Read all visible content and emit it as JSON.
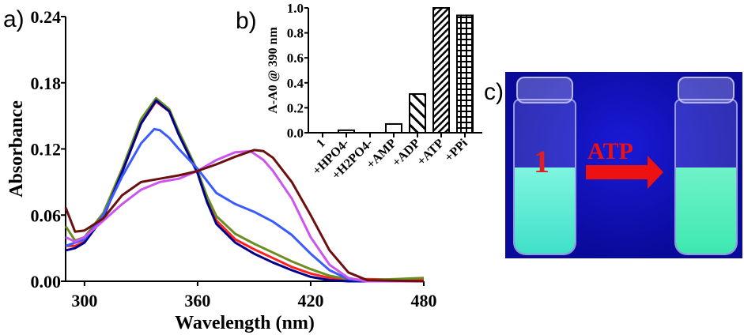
{
  "panels": {
    "a": "a)",
    "b": "b)",
    "c": "c)"
  },
  "chart_data": [
    {
      "type": "line",
      "xlabel": "Wavelength (nm)",
      "ylabel": "Absorbance",
      "xlim": [
        290,
        480
      ],
      "ylim": [
        0,
        0.24
      ],
      "xticks": [
        "300",
        "360",
        "420",
        "480"
      ],
      "xtick_values": [
        300,
        360,
        420,
        480
      ],
      "yticks": [
        "0.00",
        "0.06",
        "0.12",
        "0.18",
        "0.24"
      ],
      "ytick_values": [
        0,
        0.06,
        0.12,
        0.18,
        0.24
      ],
      "grid": false,
      "series": [
        {
          "color": "#ff2020",
          "x": [
            290,
            295,
            300,
            310,
            320,
            330,
            338,
            345,
            350,
            360,
            365,
            370,
            380,
            390,
            400,
            410,
            420,
            430,
            440,
            450,
            480
          ],
          "y": [
            0.032,
            0.032,
            0.036,
            0.058,
            0.099,
            0.143,
            0.163,
            0.154,
            0.134,
            0.099,
            0.074,
            0.055,
            0.038,
            0.029,
            0.021,
            0.013,
            0.007,
            0.003,
            0.001,
            0.002,
            0.001
          ]
        },
        {
          "color": "#6b8e23",
          "x": [
            290,
            295,
            300,
            310,
            320,
            330,
            338,
            345,
            350,
            360,
            365,
            370,
            380,
            390,
            400,
            410,
            420,
            430,
            440,
            450,
            480
          ],
          "y": [
            0.05,
            0.037,
            0.04,
            0.062,
            0.102,
            0.147,
            0.166,
            0.156,
            0.136,
            0.1,
            0.077,
            0.059,
            0.043,
            0.034,
            0.026,
            0.018,
            0.011,
            0.005,
            0.002,
            0.001,
            0.003
          ]
        },
        {
          "color": "#00008b",
          "x": [
            290,
            295,
            300,
            310,
            320,
            330,
            338,
            345,
            350,
            360,
            365,
            370,
            380,
            390,
            400,
            410,
            420,
            430,
            440,
            450,
            480
          ],
          "y": [
            0.028,
            0.03,
            0.035,
            0.058,
            0.099,
            0.143,
            0.164,
            0.154,
            0.133,
            0.098,
            0.072,
            0.052,
            0.035,
            0.025,
            0.017,
            0.01,
            0.004,
            0.001,
            0,
            0,
            0
          ]
        },
        {
          "color": "#3a5bff",
          "x": [
            290,
            300,
            310,
            320,
            330,
            337,
            340,
            345,
            350,
            360,
            370,
            380,
            390,
            400,
            410,
            420,
            430,
            440,
            450,
            480
          ],
          "y": [
            0.032,
            0.038,
            0.06,
            0.095,
            0.125,
            0.138,
            0.137,
            0.13,
            0.12,
            0.102,
            0.08,
            0.07,
            0.063,
            0.054,
            0.042,
            0.025,
            0.01,
            0.002,
            0,
            0
          ]
        },
        {
          "color": "#cc55ee",
          "x": [
            290,
            295,
            300,
            310,
            320,
            330,
            340,
            350,
            360,
            370,
            380,
            388,
            395,
            400,
            410,
            420,
            430,
            440,
            450,
            480
          ],
          "y": [
            0.04,
            0.036,
            0.04,
            0.055,
            0.07,
            0.083,
            0.09,
            0.093,
            0.1,
            0.11,
            0.117,
            0.118,
            0.11,
            0.1,
            0.075,
            0.04,
            0.015,
            0.003,
            0,
            0
          ]
        },
        {
          "color": "#6b0f0f",
          "x": [
            290,
            295,
            300,
            310,
            320,
            330,
            340,
            350,
            360,
            370,
            380,
            390,
            395,
            400,
            410,
            420,
            430,
            440,
            450,
            480
          ],
          "y": [
            0.067,
            0.045,
            0.046,
            0.057,
            0.078,
            0.09,
            0.093,
            0.096,
            0.1,
            0.106,
            0.113,
            0.119,
            0.118,
            0.112,
            0.09,
            0.06,
            0.028,
            0.008,
            0.001,
            0
          ]
        }
      ]
    },
    {
      "type": "bar",
      "ylabel": "A-A0 @ 390 nm",
      "ylim": [
        0,
        1.0
      ],
      "yticks": [
        "0.0",
        "0.2",
        "0.4",
        "0.6",
        "0.8",
        "1.0"
      ],
      "ytick_values": [
        0,
        0.2,
        0.4,
        0.6,
        0.8,
        1.0
      ],
      "categories": [
        "1",
        "+HPO4-",
        "+H2PO4-",
        "+AMP",
        "+ADP",
        "+ATP",
        "+PPi"
      ],
      "values": [
        0,
        0.02,
        0,
        0.07,
        0.31,
        1.0,
        0.94
      ],
      "patterns": [
        "none",
        "open",
        "open",
        "open",
        "wide-diagonal",
        "dense-diagonal",
        "grid"
      ]
    }
  ],
  "photo": {
    "vial_label": "1",
    "arrow_label": "ATP"
  }
}
